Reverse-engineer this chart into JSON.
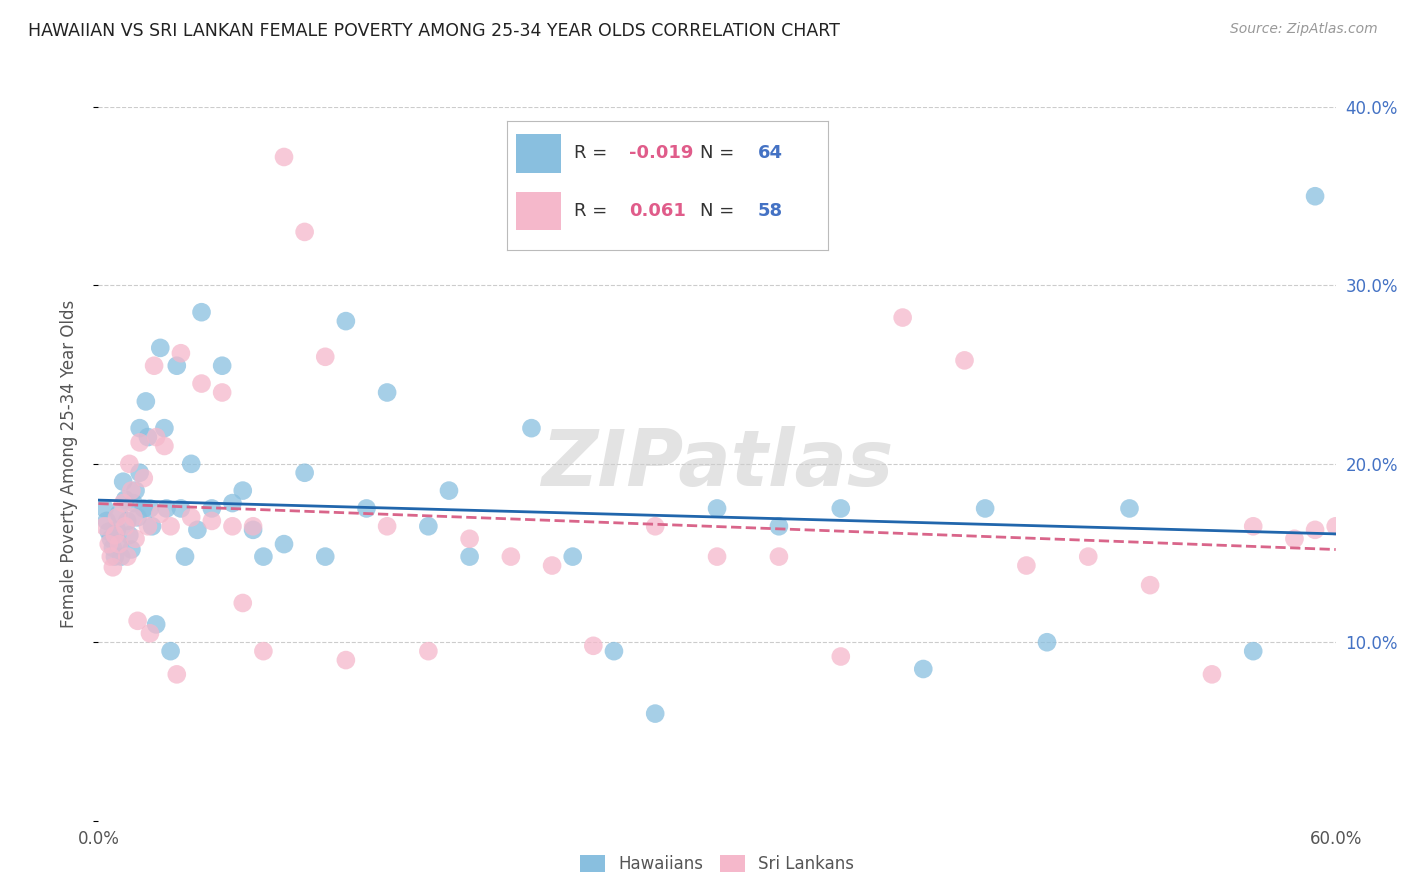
{
  "title": "HAWAIIAN VS SRI LANKAN FEMALE POVERTY AMONG 25-34 YEAR OLDS CORRELATION CHART",
  "source": "Source: ZipAtlas.com",
  "ylabel": "Female Poverty Among 25-34 Year Olds",
  "xlim": [
    0,
    0.6
  ],
  "ylim": [
    0,
    0.4
  ],
  "xticks": [
    0.0,
    0.6
  ],
  "xticklabels": [
    "0.0%",
    "60.0%"
  ],
  "yticks": [
    0.0,
    0.1,
    0.2,
    0.3,
    0.4
  ],
  "yticklabels_right": [
    "",
    "10.0%",
    "20.0%",
    "30.0%",
    "40.0%"
  ],
  "grid_yticks": [
    0.1,
    0.2,
    0.3,
    0.4
  ],
  "hawaii_color": "#89bfdf",
  "srilanka_color": "#f5b8cb",
  "hawaii_line_color": "#2166ac",
  "srilanka_line_color": "#d9658a",
  "hawaii_R": "-0.019",
  "hawaii_N": "64",
  "srilanka_R": "0.061",
  "srilanka_N": "58",
  "watermark": "ZIPatlas",
  "background_color": "#ffffff",
  "hawaii_x": [
    0.003,
    0.004,
    0.005,
    0.006,
    0.007,
    0.008,
    0.009,
    0.01,
    0.01,
    0.011,
    0.012,
    0.013,
    0.014,
    0.015,
    0.016,
    0.017,
    0.018,
    0.019,
    0.02,
    0.02,
    0.022,
    0.023,
    0.024,
    0.025,
    0.026,
    0.028,
    0.03,
    0.032,
    0.033,
    0.035,
    0.038,
    0.04,
    0.042,
    0.045,
    0.048,
    0.05,
    0.055,
    0.06,
    0.065,
    0.07,
    0.075,
    0.08,
    0.09,
    0.1,
    0.11,
    0.12,
    0.13,
    0.14,
    0.16,
    0.17,
    0.18,
    0.21,
    0.23,
    0.25,
    0.27,
    0.3,
    0.33,
    0.36,
    0.4,
    0.43,
    0.46,
    0.5,
    0.56,
    0.59
  ],
  "hawaii_y": [
    0.175,
    0.168,
    0.162,
    0.158,
    0.153,
    0.148,
    0.163,
    0.172,
    0.155,
    0.148,
    0.19,
    0.18,
    0.168,
    0.16,
    0.152,
    0.178,
    0.185,
    0.17,
    0.22,
    0.195,
    0.175,
    0.235,
    0.215,
    0.175,
    0.165,
    0.11,
    0.265,
    0.22,
    0.175,
    0.095,
    0.255,
    0.175,
    0.148,
    0.2,
    0.163,
    0.285,
    0.175,
    0.255,
    0.178,
    0.185,
    0.163,
    0.148,
    0.155,
    0.195,
    0.148,
    0.28,
    0.175,
    0.24,
    0.165,
    0.185,
    0.148,
    0.22,
    0.148,
    0.095,
    0.06,
    0.175,
    0.165,
    0.175,
    0.085,
    0.175,
    0.1,
    0.175,
    0.095,
    0.35
  ],
  "srilanka_x": [
    0.003,
    0.005,
    0.006,
    0.007,
    0.008,
    0.009,
    0.01,
    0.012,
    0.013,
    0.014,
    0.015,
    0.016,
    0.017,
    0.018,
    0.019,
    0.02,
    0.022,
    0.024,
    0.025,
    0.027,
    0.028,
    0.03,
    0.032,
    0.035,
    0.038,
    0.04,
    0.045,
    0.05,
    0.055,
    0.06,
    0.065,
    0.07,
    0.075,
    0.08,
    0.09,
    0.1,
    0.11,
    0.12,
    0.14,
    0.16,
    0.18,
    0.2,
    0.22,
    0.24,
    0.27,
    0.3,
    0.33,
    0.36,
    0.39,
    0.42,
    0.45,
    0.48,
    0.51,
    0.54,
    0.56,
    0.58,
    0.59,
    0.6
  ],
  "srilanka_y": [
    0.165,
    0.155,
    0.148,
    0.142,
    0.16,
    0.17,
    0.155,
    0.178,
    0.165,
    0.148,
    0.2,
    0.185,
    0.17,
    0.158,
    0.112,
    0.212,
    0.192,
    0.165,
    0.105,
    0.255,
    0.215,
    0.172,
    0.21,
    0.165,
    0.082,
    0.262,
    0.17,
    0.245,
    0.168,
    0.24,
    0.165,
    0.122,
    0.165,
    0.095,
    0.372,
    0.33,
    0.26,
    0.09,
    0.165,
    0.095,
    0.158,
    0.148,
    0.143,
    0.098,
    0.165,
    0.148,
    0.148,
    0.092,
    0.282,
    0.258,
    0.143,
    0.148,
    0.132,
    0.082,
    0.165,
    0.158,
    0.163,
    0.165
  ]
}
